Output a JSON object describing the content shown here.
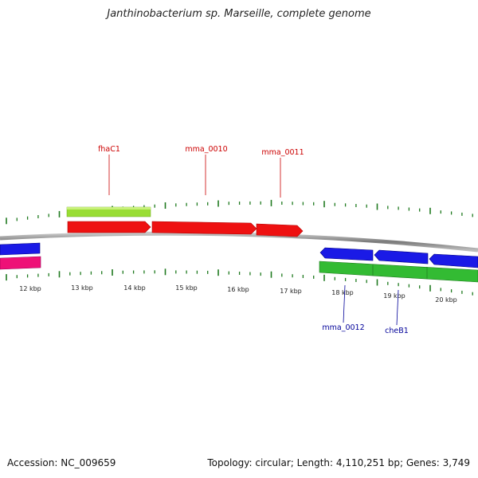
{
  "title": "Janthinobacterium sp. Marseille, complete genome",
  "footer": {
    "accession": "Accession: NC_009659",
    "summary": "Topology: circular; Length: 4,110,251 bp; Genes: 3,749"
  },
  "colors": {
    "forward_cds": "#ee1111",
    "reverse_cds": "#1a1ae6",
    "forward_gene": "#99dd33",
    "reverse_gene": "#33bb33",
    "other_feature": "#ee1177",
    "tick": "#1f7a1f",
    "backbone": "#888888",
    "forward_label": "#cc0000",
    "reverse_label": "#000099"
  },
  "kbp_labels": [
    "12 kbp",
    "13 kbp",
    "14 kbp",
    "15 kbp",
    "16 kbp",
    "17 kbp",
    "18 kbp",
    "19 kbp",
    "20 kbp"
  ],
  "gene_labels": [
    {
      "name": "fhaC1",
      "strand": "forward"
    },
    {
      "name": "mma_0010",
      "strand": "forward"
    },
    {
      "name": "mma_0011",
      "strand": "forward"
    },
    {
      "name": "mma_0012",
      "strand": "reverse"
    },
    {
      "name": "cheB1",
      "strand": "reverse"
    }
  ]
}
